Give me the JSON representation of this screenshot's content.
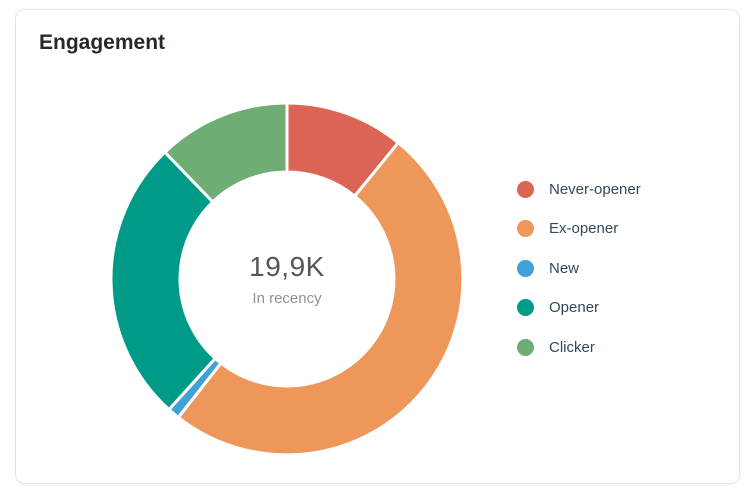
{
  "card": {
    "title": "Engagement"
  },
  "chart_data": {
    "type": "pie",
    "variant": "donut",
    "title": "Engagement",
    "center_value": "19,9K",
    "center_label": "In recency",
    "start_angle_deg": 0,
    "direction": "clockwise",
    "inner_radius_ratio": 0.61,
    "legend_position": "right",
    "segments": [
      {
        "label": "Never-opener",
        "color": "#dc6455",
        "pct": 10.9
      },
      {
        "label": "Ex-opener",
        "color": "#ee975b",
        "pct": 49.7
      },
      {
        "label": "New",
        "color": "#41a0d5",
        "pct": 1.1
      },
      {
        "label": "Opener",
        "color": "#009b88",
        "pct": 26.1
      },
      {
        "label": "Clicker",
        "color": "#6ead74",
        "pct": 12.2
      }
    ]
  }
}
